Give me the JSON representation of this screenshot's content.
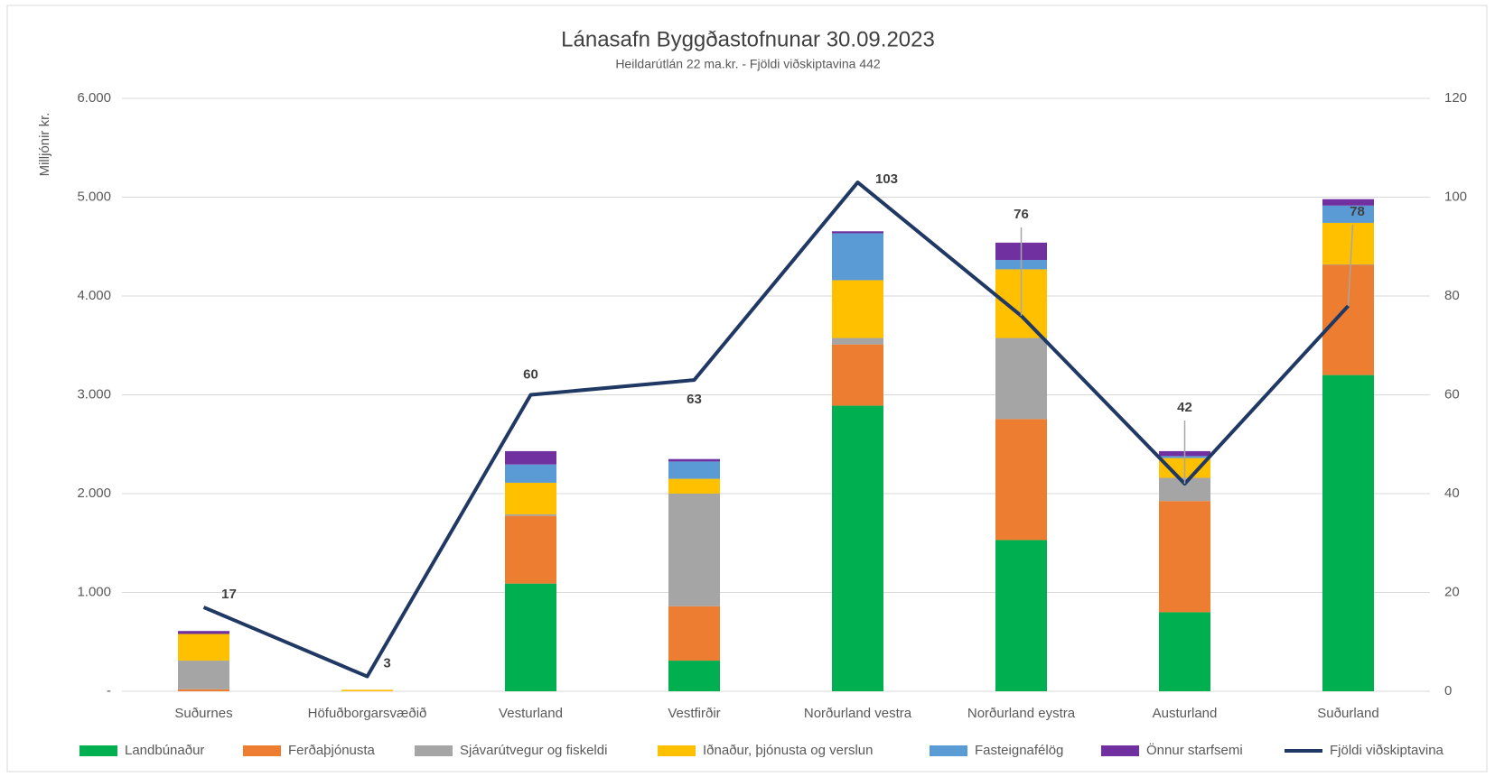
{
  "chart_data": {
    "type": "bar",
    "title": "Lánasafn Byggðastofnunar 30.09.2023",
    "subtitle": "Heildarútlán 22 ma.kr. - Fjöldi viðskiptavina 442",
    "y_label": "Milljónir kr.",
    "stacked": true,
    "categories": [
      "Suðurnes",
      "Höfuðborgarsvæðið",
      "Vesturland",
      "Vestfirðir",
      "Norðurland vestra",
      "Norðurland eystra",
      "Austurland",
      "Suðurland"
    ],
    "series": [
      {
        "name": "Landbúnaður",
        "color": "#00b050",
        "values": [
          0,
          0,
          1090,
          310,
          2890,
          1530,
          800,
          3200
        ]
      },
      {
        "name": "Ferðaþjónusta",
        "color": "#ed7d31",
        "values": [
          20,
          0,
          685,
          550,
          620,
          1225,
          1125,
          1115
        ]
      },
      {
        "name": "Sjávarútvegur og fiskeldi",
        "color": "#a5a5a5",
        "values": [
          290,
          0,
          15,
          1140,
          65,
          820,
          235,
          5
        ]
      },
      {
        "name": "Iðnaður, þjónusta og verslun",
        "color": "#ffc000",
        "values": [
          270,
          15,
          320,
          150,
          585,
          695,
          200,
          420
        ]
      },
      {
        "name": "Fasteignafélög",
        "color": "#5b9bd5",
        "values": [
          0,
          0,
          185,
          175,
          475,
          95,
          20,
          175
        ]
      },
      {
        "name": "Önnur starfsemi",
        "color": "#7030a0",
        "values": [
          30,
          0,
          135,
          25,
          20,
          175,
          50,
          65
        ]
      },
      {
        "name": "Fjöldi viðskiptavina",
        "color": "#203864",
        "type": "line",
        "axis": "y2",
        "values": [
          17,
          3,
          60,
          63,
          103,
          76,
          42,
          78
        ]
      }
    ],
    "ylim": [
      0,
      6000
    ],
    "yticks": [
      {
        "value": 0,
        "label": "-"
      },
      {
        "value": 1000,
        "label": "1.000"
      },
      {
        "value": 2000,
        "label": "2.000"
      },
      {
        "value": 3000,
        "label": "3.000"
      },
      {
        "value": 4000,
        "label": "4.000"
      },
      {
        "value": 5000,
        "label": "5.000"
      },
      {
        "value": 6000,
        "label": "6.000"
      }
    ],
    "y2lim": [
      0,
      120
    ],
    "y2ticks": [
      0,
      20,
      40,
      60,
      80,
      100,
      120
    ],
    "grid": true,
    "legend": "bottom"
  }
}
